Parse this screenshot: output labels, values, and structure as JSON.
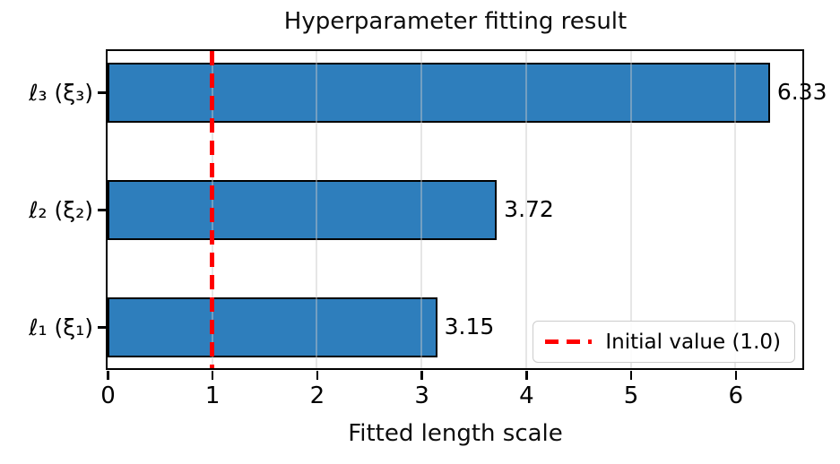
{
  "chart_data": {
    "type": "bar",
    "orientation": "horizontal",
    "title": "Hyperparameter fitting result",
    "xlabel": "Fitted length scale",
    "categories": [
      "ℓ₁ (ξ₁)",
      "ℓ₂ (ξ₂)",
      "ℓ₃ (ξ₃)"
    ],
    "values": [
      3.15,
      3.72,
      6.33
    ],
    "bar_labels": [
      "3.15",
      "3.72",
      "6.33"
    ],
    "xlim": [
      0,
      6.64
    ],
    "xticks": [
      0,
      1,
      2,
      3,
      4,
      5,
      6
    ],
    "grid": "vertical-x-ticks-drawn-over-bars",
    "legend_position": "lower right",
    "reference_line": {
      "x": 1.0,
      "style": "dashed",
      "label": "Initial value (1.0)"
    },
    "colors": {
      "bar_fill": "#2e7ebc",
      "bar_edge": "#000000",
      "reference_line": "#ff0000",
      "spine": "#000000",
      "grid": "#e6e6e6",
      "text": "#000000",
      "legend_border": "#cccccc",
      "background": "#ffffff"
    }
  }
}
